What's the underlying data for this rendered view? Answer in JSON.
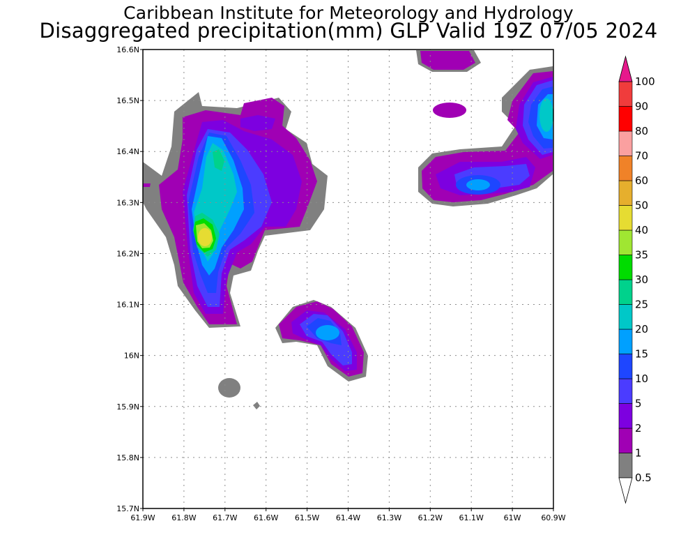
{
  "titles": {
    "line1": "Caribbean Institute for Meteorology and Hydrology",
    "line2": "Disaggregated precipitation(mm) GLP Valid 19Z 07/05 2024"
  },
  "map": {
    "lon_ticks": [
      "61.9W",
      "61.8W",
      "61.7W",
      "61.6W",
      "61.5W",
      "61.4W",
      "61.3W",
      "61.2W",
      "61.1W",
      "61W",
      "60.9W"
    ],
    "lat_ticks": [
      "16.6N",
      "16.5N",
      "16.4N",
      "16.3N",
      "16.2N",
      "16.1N",
      "16N",
      "15.9N",
      "15.8N",
      "15.7N"
    ],
    "grid": true
  },
  "colorbar": {
    "levels": [
      {
        "label": "0.5",
        "color": "#ffffff"
      },
      {
        "label": "1",
        "color": "#808080"
      },
      {
        "label": "2",
        "color": "#a000b4"
      },
      {
        "label": "5",
        "color": "#7d00e0"
      },
      {
        "label": "10",
        "color": "#4b3cff"
      },
      {
        "label": "15",
        "color": "#1e46ff"
      },
      {
        "label": "20",
        "color": "#00a0ff"
      },
      {
        "label": "25",
        "color": "#00c8c8"
      },
      {
        "label": "30",
        "color": "#00d28c"
      },
      {
        "label": "35",
        "color": "#00dc00"
      },
      {
        "label": "40",
        "color": "#a0e632"
      },
      {
        "label": "50",
        "color": "#e6dc32"
      },
      {
        "label": "60",
        "color": "#e6af2d"
      },
      {
        "label": "70",
        "color": "#f08228"
      },
      {
        "label": "80",
        "color": "#faa0a0"
      },
      {
        "label": "90",
        "color": "#ff0000"
      },
      {
        "label": "100",
        "color": "#f03c3c"
      }
    ],
    "top_arrow_color": "#e6198c"
  }
}
